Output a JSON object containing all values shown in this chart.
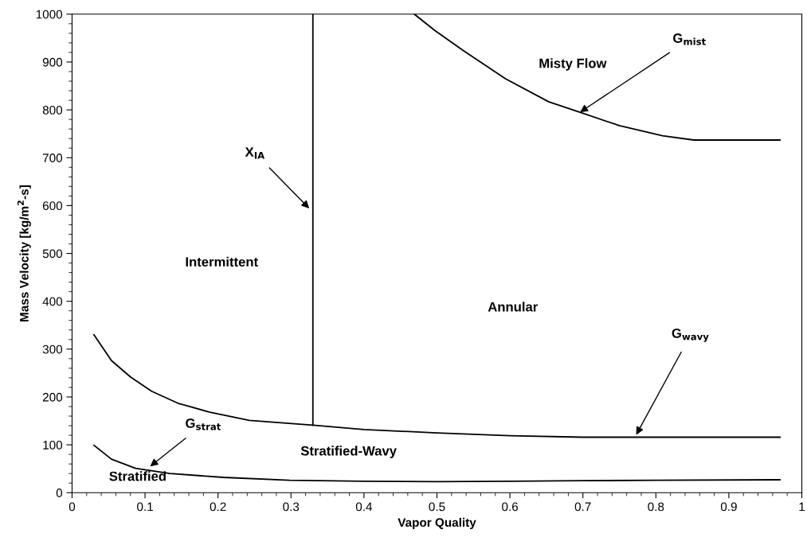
{
  "chart_data": {
    "type": "line",
    "xlabel": "Vapor Quality",
    "ylabel": "Mass Velocity [kg/m$^{2}$-s]",
    "xlim": [
      0,
      1
    ],
    "xticks": [
      0,
      0.1,
      0.2,
      0.3,
      0.4,
      0.5,
      0.6,
      0.7,
      0.8,
      0.9,
      1
    ],
    "ylim": [
      0,
      1000
    ],
    "yticks": [
      0,
      100,
      200,
      300,
      400,
      500,
      600,
      700,
      800,
      900,
      1000
    ],
    "grid": false,
    "legend": false,
    "marker": "none",
    "line_style": "solid",
    "series": [
      {
        "color": "#000000",
        "x": [
          0.03,
          0.054,
          0.08,
          0.109,
          0.145,
          0.189,
          0.243,
          0.33,
          0.4,
          0.5,
          0.6,
          0.7,
          0.8,
          0.97
        ],
        "values": [
          330,
          276,
          242,
          212,
          187,
          168,
          151,
          141,
          132,
          125,
          119,
          116,
          116,
          116
        ]
      },
      {
        "color": "#000000",
        "x": [
          0.03,
          0.054,
          0.087,
          0.134,
          0.207,
          0.298,
          0.4,
          0.5,
          0.6,
          0.7,
          0.8,
          0.97
        ],
        "values": [
          99,
          70,
          51,
          40,
          32,
          26,
          24,
          23,
          24,
          25,
          26,
          27
        ]
      },
      {
        "color": "#000000",
        "x": [
          0.33,
          0.33
        ],
        "values": [
          141,
          1000
        ]
      },
      {
        "color": "#000000",
        "x": [
          0.469,
          0.497,
          0.536,
          0.594,
          0.653,
          0.696,
          0.75,
          0.809,
          0.852,
          0.97
        ],
        "values": [
          1000,
          966,
          924,
          865,
          817,
          795,
          767,
          746,
          737,
          737
        ]
      }
    ],
    "annotations": [
      {
        "text": "X$_{IA}$",
        "x": 0.325,
        "y": 594
      },
      {
        "text": "G$_{mist}$",
        "x": 0.696,
        "y": 795
      },
      {
        "text": "G$_{wavy}$",
        "x": 0.773,
        "y": 121
      },
      {
        "text": "G$_{strat}$",
        "x": 0.107,
        "y": 55
      },
      "Misty Flow",
      "Intermittent",
      "Annular",
      "Stratified-Wavy",
      "Stratified"
    ]
  }
}
